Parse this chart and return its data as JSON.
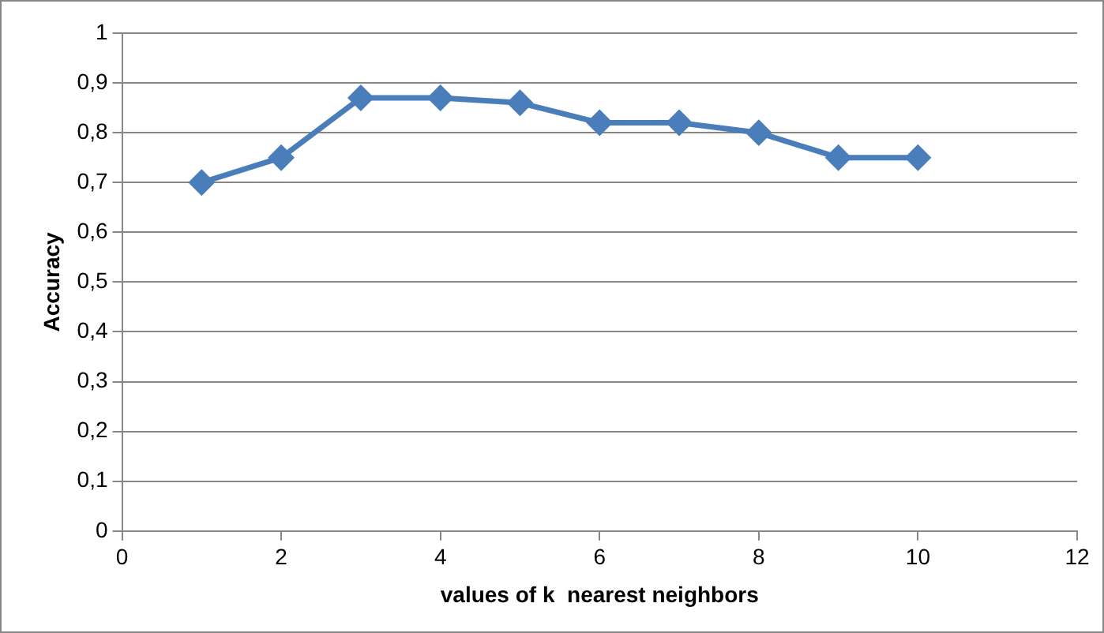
{
  "chart_data": {
    "type": "line",
    "xlabel": "values of k  nearest neighbors",
    "ylabel": "Accuracy",
    "x": [
      1,
      2,
      3,
      4,
      5,
      6,
      7,
      8,
      9,
      10
    ],
    "series": [
      {
        "color": "#4a7ebb",
        "values": [
          0.7,
          0.75,
          0.87,
          0.87,
          0.86,
          0.82,
          0.82,
          0.8,
          0.75,
          0.75
        ]
      }
    ],
    "xlim": [
      0,
      12
    ],
    "xticks": [
      0,
      2,
      4,
      6,
      8,
      10,
      12
    ],
    "ylim": [
      0,
      1
    ],
    "yticks": [
      0,
      {
        "value": 0.1,
        "label": "0,1"
      },
      {
        "value": 0.2,
        "label": "0,2"
      },
      {
        "value": 0.3,
        "label": "0,3"
      },
      {
        "value": 0.4,
        "label": "0,4"
      },
      {
        "value": 0.5,
        "label": "0,5"
      },
      {
        "value": 0.6,
        "label": "0,6"
      },
      {
        "value": 0.7,
        "label": "0,7"
      },
      {
        "value": 0.8,
        "label": "0,8"
      },
      {
        "value": 0.9,
        "label": "0,9"
      },
      1
    ],
    "grid": "y",
    "marker": "diamond",
    "line_style": "solid",
    "legend": false
  }
}
